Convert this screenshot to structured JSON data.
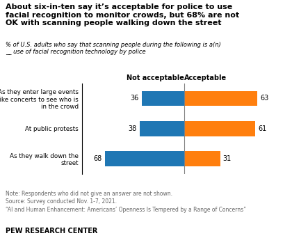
{
  "chart_data": {
    "type": "bar",
    "orientation": "horizontal",
    "title": "About six-in-ten say it’s acceptable for police to use\nfacial recognition to monitor crowds, but 68% are not\nOK with scanning people walking down the street",
    "subtitle": "% of U.S. adults who say that scanning people during the following is a(n)\n__ use of facial recognition technology by police",
    "categories": [
      "As they enter large events\nlike concerts to see who is\nin the crowd",
      "At public protests",
      "As they walk down the\nstreet"
    ],
    "series": [
      {
        "name": "Not acceptable",
        "values": [
          36,
          38,
          68
        ]
      },
      {
        "name": "Acceptable",
        "values": [
          63,
          61,
          31
        ]
      }
    ],
    "data_labels": true,
    "tick_labels": "y",
    "grid": false,
    "annotations": [
      "Note: Respondents who did not give an answer are not shown.\nSource: Survey conducted Nov. 1-7, 2021.\n“AI and Human Enhancement: Americans’ Openness Is Tempered by a Range of Concerns”",
      "PEW RESEARCH CENTER"
    ]
  }
}
